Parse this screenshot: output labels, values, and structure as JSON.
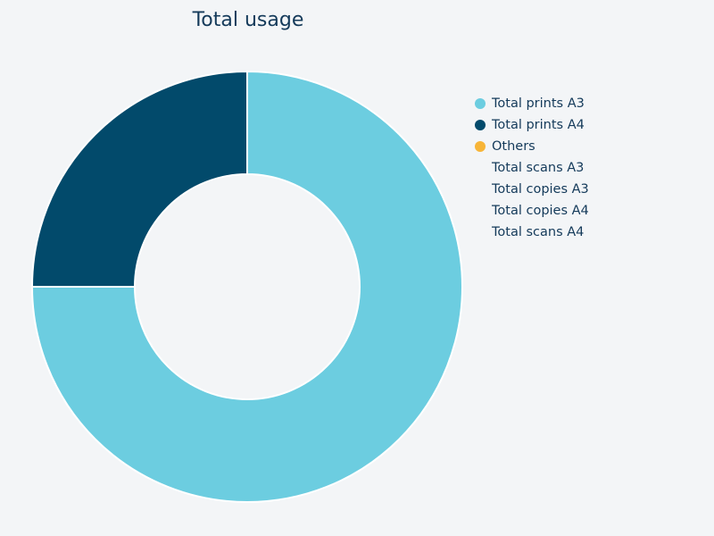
{
  "chart_data": {
    "type": "pie",
    "variant": "donut",
    "title": "Total usage",
    "legend_position": "right",
    "series": [
      {
        "name": "Total prints A3",
        "value": 75,
        "color": "#6ccde0",
        "shown": true
      },
      {
        "name": "Total prints A4",
        "value": 25,
        "color": "#024a6b",
        "shown": true
      },
      {
        "name": "Others",
        "value": 0,
        "color": "#f7b538",
        "shown": true
      },
      {
        "name": "Total scans A3",
        "value": 0,
        "color": "",
        "shown": false
      },
      {
        "name": "Total copies A3",
        "value": 0,
        "color": "",
        "shown": false
      },
      {
        "name": "Total copies A4",
        "value": 0,
        "color": "",
        "shown": false
      },
      {
        "name": "Total scans A4",
        "value": 0,
        "color": "",
        "shown": false
      }
    ]
  }
}
